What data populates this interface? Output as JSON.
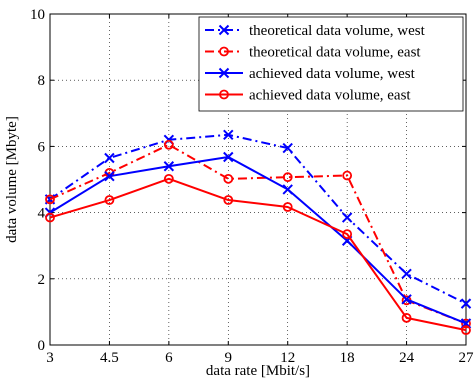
{
  "chart_data": {
    "type": "line",
    "xlabel": "data rate [Mbit/s]",
    "ylabel": "data volume [Mbyte]",
    "categories": [
      "3",
      "4.5",
      "6",
      "9",
      "12",
      "18",
      "24",
      "27"
    ],
    "ylim": [
      0,
      10
    ],
    "yticks": [
      "0",
      "2",
      "4",
      "6",
      "8",
      "10"
    ],
    "grid": true,
    "legend_position": "top-right",
    "series": [
      {
        "name": "theoretical data volume, west",
        "color": "#0000ff",
        "line_style": "dash-dot",
        "marker": "x",
        "values": [
          4.4,
          5.65,
          6.2,
          6.35,
          5.95,
          3.85,
          2.15,
          1.25
        ]
      },
      {
        "name": "theoretical data volume, east",
        "color": "#ff0000",
        "line_style": "dash-dot",
        "marker": "o",
        "values": [
          4.4,
          5.2,
          6.05,
          5.02,
          5.07,
          5.12,
          1.35,
          0.65
        ]
      },
      {
        "name": "achieved data volume, west",
        "color": "#0000ff",
        "line_style": "solid",
        "marker": "x",
        "values": [
          4.0,
          5.1,
          5.4,
          5.68,
          4.7,
          3.15,
          1.38,
          0.65
        ]
      },
      {
        "name": "achieved data volume, east",
        "color": "#ff0000",
        "line_style": "solid",
        "marker": "o",
        "values": [
          3.85,
          4.38,
          5.02,
          4.38,
          4.17,
          3.35,
          0.82,
          0.45
        ]
      }
    ]
  }
}
